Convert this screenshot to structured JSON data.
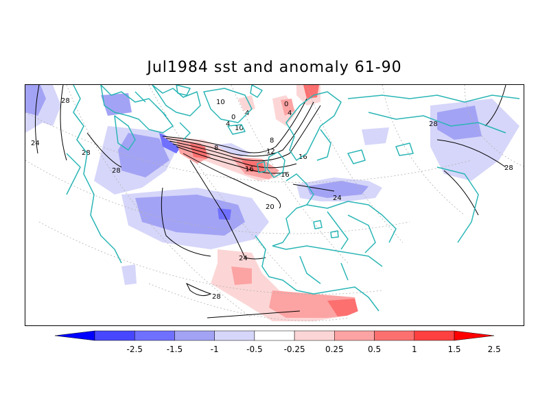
{
  "title": "Jul1984 sst and anomaly 61-90",
  "colorbar": {
    "labels": [
      "-2.5",
      "-1.5",
      "-1",
      "-0.5",
      "-0.25",
      "0.25",
      "0.5",
      "1",
      "1.5",
      "2.5"
    ],
    "colors": [
      "#0000ff",
      "#4747ff",
      "#7070ff",
      "#a3a3f5",
      "#d6d6fa",
      "#ffffff",
      "#fcd6d6",
      "#fca3a3",
      "#fc7070",
      "#ff4040",
      "#ff0000"
    ]
  },
  "contour_labels": [
    "28",
    "24",
    "28",
    "28",
    "0",
    "4",
    "8",
    "12",
    "16",
    "16",
    "20",
    "24",
    "28",
    "4",
    "0",
    "8",
    "16",
    "28",
    "24",
    "28",
    "10",
    "4",
    "10"
  ],
  "colors": {
    "coast": "#2ab5b5",
    "contour": "#000000",
    "grid": "#b0b0b0"
  }
}
